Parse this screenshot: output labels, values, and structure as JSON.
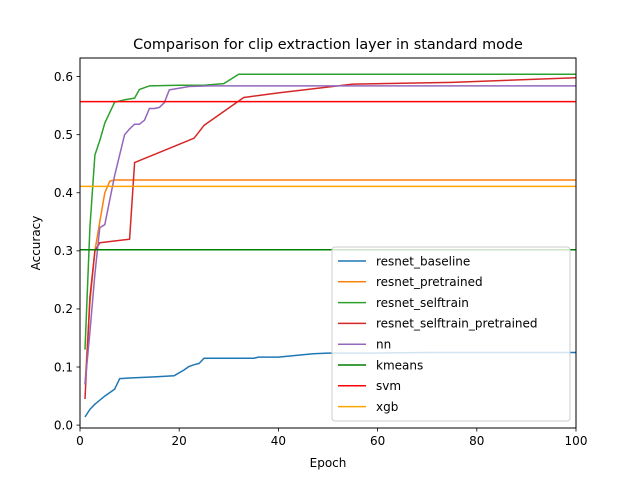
{
  "chart_data": {
    "type": "line",
    "title": "Comparison for clip extraction layer in standard mode",
    "xlabel": "Epoch",
    "ylabel": "Accuracy",
    "xlim": [
      0,
      100
    ],
    "ylim": [
      -0.005,
      0.632
    ],
    "xticks": [
      0,
      20,
      40,
      60,
      80,
      100
    ],
    "yticks": [
      0.0,
      0.1,
      0.2,
      0.3,
      0.4,
      0.5,
      0.6
    ],
    "ytick_labels": [
      "0.0",
      "0.1",
      "0.2",
      "0.3",
      "0.4",
      "0.5",
      "0.6"
    ],
    "grid": false,
    "legend_position": "lower-right",
    "series": [
      {
        "name": "resnet_baseline",
        "color": "#1f77b4",
        "x": [
          1,
          2,
          3,
          5,
          7,
          8,
          10,
          15,
          19,
          21,
          22,
          23,
          24,
          25,
          30,
          35,
          36,
          40,
          47,
          50,
          60,
          70,
          80,
          90,
          100
        ],
        "y": [
          0.014,
          0.027,
          0.036,
          0.05,
          0.062,
          0.08,
          0.081,
          0.083,
          0.085,
          0.095,
          0.101,
          0.104,
          0.106,
          0.115,
          0.115,
          0.115,
          0.117,
          0.117,
          0.123,
          0.124,
          0.124,
          0.125,
          0.125,
          0.125,
          0.125
        ]
      },
      {
        "name": "resnet_pretrained",
        "color": "#ff7f0e",
        "x": [
          1,
          2,
          3,
          4,
          5,
          6,
          7,
          10,
          20,
          40,
          60,
          80,
          100
        ],
        "y": [
          0.07,
          0.21,
          0.3,
          0.35,
          0.4,
          0.42,
          0.422,
          0.422,
          0.422,
          0.422,
          0.422,
          0.422,
          0.422
        ]
      },
      {
        "name": "resnet_selftrain",
        "color": "#2ca02c",
        "x": [
          1,
          2,
          3,
          4,
          5,
          7,
          9,
          11,
          12,
          14,
          20,
          25,
          29,
          32,
          40,
          60,
          80,
          100
        ],
        "y": [
          0.13,
          0.34,
          0.465,
          0.49,
          0.52,
          0.556,
          0.56,
          0.563,
          0.578,
          0.584,
          0.585,
          0.585,
          0.588,
          0.604,
          0.604,
          0.604,
          0.604,
          0.604
        ]
      },
      {
        "name": "resnet_selftrain_pretrained",
        "color": "#d62728",
        "x": [
          1,
          2,
          3,
          4,
          10,
          11,
          23,
          25,
          33,
          40,
          55,
          75,
          100
        ],
        "y": [
          0.045,
          0.22,
          0.3,
          0.314,
          0.32,
          0.452,
          0.494,
          0.516,
          0.564,
          0.572,
          0.587,
          0.59,
          0.598
        ]
      },
      {
        "name": "nn",
        "color": "#9467bd",
        "x": [
          1,
          2,
          3,
          4,
          5,
          7,
          9,
          10,
          11,
          12,
          13,
          14,
          15,
          16,
          17,
          18,
          22,
          26,
          40,
          60,
          80,
          100
        ],
        "y": [
          0.07,
          0.16,
          0.26,
          0.34,
          0.345,
          0.43,
          0.5,
          0.51,
          0.518,
          0.518,
          0.525,
          0.545,
          0.545,
          0.547,
          0.555,
          0.577,
          0.583,
          0.584,
          0.584,
          0.584,
          0.584,
          0.584
        ]
      },
      {
        "name": "kmeans",
        "color": "#008000",
        "x": [
          0,
          100
        ],
        "y": [
          0.302,
          0.302
        ]
      },
      {
        "name": "svm",
        "color": "#ff0000",
        "x": [
          0,
          100
        ],
        "y": [
          0.557,
          0.557
        ]
      },
      {
        "name": "xgb",
        "color": "#ffa500",
        "x": [
          0,
          100
        ],
        "y": [
          0.411,
          0.411
        ]
      }
    ]
  }
}
